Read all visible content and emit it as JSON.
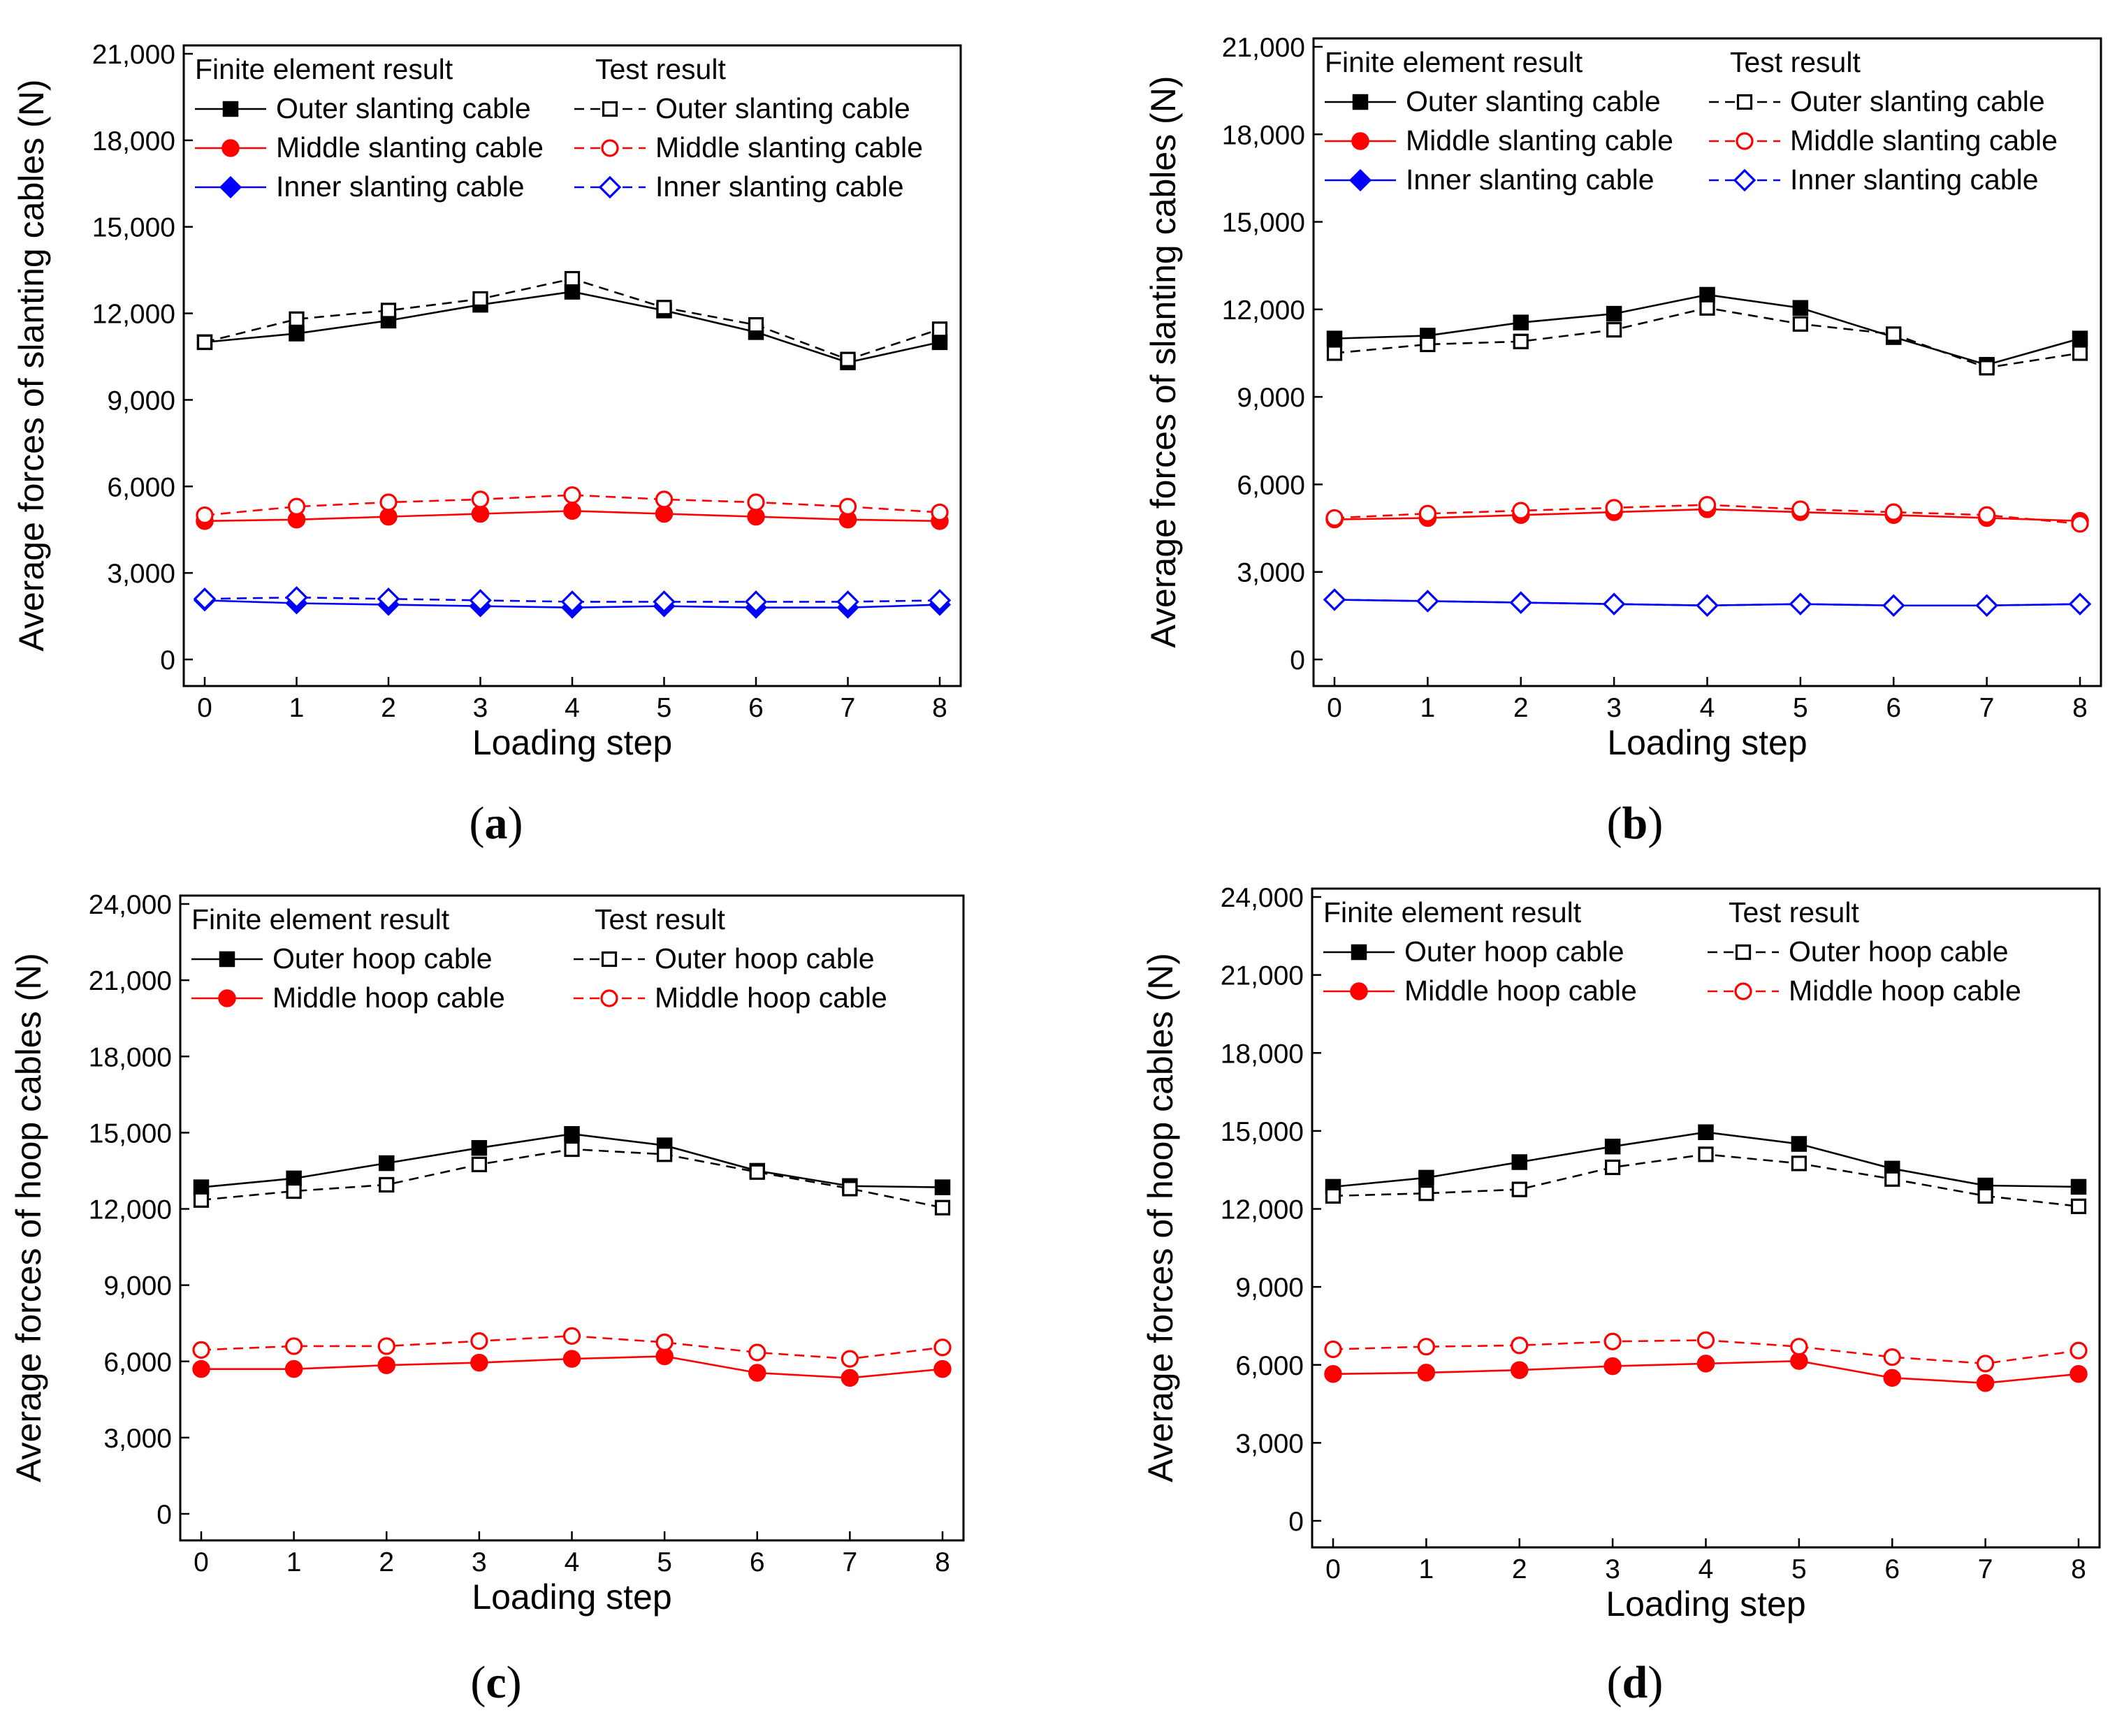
{
  "colors": {
    "black": "#000000",
    "red": "#ff0000",
    "blue": "#0000ff"
  },
  "chart_data": [
    {
      "id": "a",
      "type": "line",
      "panel_label": "a",
      "xlabel": "Loading step",
      "ylabel": "Average forces of slanting cables (N)",
      "x": [
        0,
        1,
        2,
        3,
        4,
        5,
        6,
        7,
        8
      ],
      "xticks": [
        "0",
        "1",
        "2",
        "3",
        "4",
        "5",
        "6",
        "7",
        "8"
      ],
      "ylim": [
        0,
        21000
      ],
      "yticks": [
        0,
        3000,
        6000,
        9000,
        12000,
        15000,
        18000,
        21000
      ],
      "ytick_labels": [
        "0",
        "3,000",
        "6,000",
        "9,000",
        "12,000",
        "15,000",
        "18,000",
        "21,000"
      ],
      "legend_headers": [
        "Finite element result",
        "Test result"
      ],
      "series": [
        {
          "name": "Outer slanting cable",
          "group": "Finite element result",
          "color": "#000000",
          "marker": "square-filled",
          "line": "solid",
          "values": [
            11000,
            11300,
            11750,
            12300,
            12750,
            12100,
            11350,
            10300,
            11000
          ]
        },
        {
          "name": "Middle slanting cable",
          "group": "Finite element result",
          "color": "#ff0000",
          "marker": "circle-filled",
          "line": "solid",
          "values": [
            4800,
            4850,
            4950,
            5050,
            5150,
            5050,
            4950,
            4850,
            4800
          ]
        },
        {
          "name": "Inner slanting cable",
          "group": "Finite element result",
          "color": "#0000ff",
          "marker": "diamond-filled",
          "line": "solid",
          "values": [
            2050,
            1950,
            1900,
            1850,
            1800,
            1850,
            1800,
            1800,
            1900
          ]
        },
        {
          "name": "Outer slanting cable",
          "group": "Test result",
          "color": "#000000",
          "marker": "square-open",
          "line": "dashed",
          "values": [
            11000,
            11800,
            12100,
            12500,
            13200,
            12200,
            11600,
            10400,
            11450
          ]
        },
        {
          "name": "Middle slanting cable",
          "group": "Test result",
          "color": "#ff0000",
          "marker": "circle-open",
          "line": "dashed",
          "values": [
            5000,
            5300,
            5450,
            5550,
            5700,
            5550,
            5450,
            5300,
            5100
          ]
        },
        {
          "name": "Inner slanting cable",
          "group": "Test result",
          "color": "#0000ff",
          "marker": "diamond-open",
          "line": "dashed",
          "values": [
            2100,
            2150,
            2100,
            2050,
            2000,
            2000,
            2000,
            2000,
            2050
          ]
        }
      ]
    },
    {
      "id": "b",
      "type": "line",
      "panel_label": "b",
      "xlabel": "Loading step",
      "ylabel": "Average forces of slanting cables (N)",
      "x": [
        0,
        1,
        2,
        3,
        4,
        5,
        6,
        7,
        8
      ],
      "xticks": [
        "0",
        "1",
        "2",
        "3",
        "4",
        "5",
        "6",
        "7",
        "8"
      ],
      "ylim": [
        0,
        21000
      ],
      "yticks": [
        0,
        3000,
        6000,
        9000,
        12000,
        15000,
        18000,
        21000
      ],
      "ytick_labels": [
        "0",
        "3,000",
        "6,000",
        "9,000",
        "12,000",
        "15,000",
        "18,000",
        "21,000"
      ],
      "legend_headers": [
        "Finite element result",
        "Test result"
      ],
      "series": [
        {
          "name": "Outer slanting cable",
          "group": "Finite element result",
          "color": "#000000",
          "marker": "square-filled",
          "line": "solid",
          "values": [
            11000,
            11100,
            11550,
            11850,
            12500,
            12050,
            11050,
            10100,
            11000
          ]
        },
        {
          "name": "Middle slanting cable",
          "group": "Finite element result",
          "color": "#ff0000",
          "marker": "circle-filled",
          "line": "solid",
          "values": [
            4800,
            4850,
            4950,
            5050,
            5150,
            5050,
            4950,
            4850,
            4750
          ]
        },
        {
          "name": "Inner slanting cable",
          "group": "Finite element result",
          "color": "#0000ff",
          "marker": "diamond-filled",
          "line": "solid",
          "values": [
            2050,
            2000,
            1950,
            1900,
            1850,
            1900,
            1850,
            1850,
            1900
          ]
        },
        {
          "name": "Outer slanting cable",
          "group": "Test result",
          "color": "#000000",
          "marker": "square-open",
          "line": "dashed",
          "values": [
            10500,
            10800,
            10900,
            11300,
            12050,
            11500,
            11150,
            10000,
            10500
          ]
        },
        {
          "name": "Middle slanting cable",
          "group": "Test result",
          "color": "#ff0000",
          "marker": "circle-open",
          "line": "dashed",
          "values": [
            4850,
            5000,
            5100,
            5200,
            5300,
            5150,
            5050,
            4950,
            4650
          ]
        },
        {
          "name": "Inner slanting cable",
          "group": "Test result",
          "color": "#0000ff",
          "marker": "diamond-open",
          "line": "dashed",
          "values": [
            2050,
            2000,
            1950,
            1900,
            1850,
            1900,
            1850,
            1850,
            1900
          ]
        }
      ]
    },
    {
      "id": "c",
      "type": "line",
      "panel_label": "c",
      "xlabel": "Loading step",
      "ylabel": "Average forces of hoop cables (N)",
      "x": [
        0,
        1,
        2,
        3,
        4,
        5,
        6,
        7,
        8
      ],
      "xticks": [
        "0",
        "1",
        "2",
        "3",
        "4",
        "5",
        "6",
        "7",
        "8"
      ],
      "ylim": [
        0,
        24000
      ],
      "yticks": [
        0,
        3000,
        6000,
        9000,
        12000,
        15000,
        18000,
        21000,
        24000
      ],
      "ytick_labels": [
        "0",
        "3,000",
        "6,000",
        "9,000",
        "12,000",
        "15,000",
        "18,000",
        "21,000",
        "24,000"
      ],
      "legend_headers": [
        "Finite element result",
        "Test result"
      ],
      "series": [
        {
          "name": "Outer hoop cable",
          "group": "Finite element result",
          "color": "#000000",
          "marker": "square-filled",
          "line": "solid",
          "values": [
            12850,
            13200,
            13800,
            14400,
            14950,
            14500,
            13500,
            12900,
            12850
          ]
        },
        {
          "name": "Middle hoop cable",
          "group": "Finite element result",
          "color": "#ff0000",
          "marker": "circle-filled",
          "line": "solid",
          "values": [
            5700,
            5700,
            5850,
            5950,
            6100,
            6200,
            5550,
            5350,
            5700
          ]
        },
        {
          "name": "Outer hoop cable",
          "group": "Test result",
          "color": "#000000",
          "marker": "square-open",
          "line": "dashed",
          "values": [
            12350,
            12700,
            12950,
            13750,
            14350,
            14150,
            13450,
            12800,
            12050
          ]
        },
        {
          "name": "Middle hoop cable",
          "group": "Test result",
          "color": "#ff0000",
          "marker": "circle-open",
          "line": "dashed",
          "values": [
            6450,
            6600,
            6600,
            6800,
            7000,
            6750,
            6350,
            6100,
            6550
          ]
        }
      ]
    },
    {
      "id": "d",
      "type": "line",
      "panel_label": "d",
      "xlabel": "Loading step",
      "ylabel": "Average forces of hoop cables (N)",
      "x": [
        0,
        1,
        2,
        3,
        4,
        5,
        6,
        7,
        8
      ],
      "xticks": [
        "0",
        "1",
        "2",
        "3",
        "4",
        "5",
        "6",
        "7",
        "8"
      ],
      "ylim": [
        0,
        24000
      ],
      "yticks": [
        0,
        3000,
        6000,
        9000,
        12000,
        15000,
        18000,
        21000,
        24000
      ],
      "ytick_labels": [
        "0",
        "3,000",
        "6,000",
        "9,000",
        "12,000",
        "15,000",
        "18,000",
        "21,000",
        "24,000"
      ],
      "legend_headers": [
        "Finite element result",
        "Test result"
      ],
      "series": [
        {
          "name": "Outer hoop cable",
          "group": "Finite element result",
          "color": "#000000",
          "marker": "square-filled",
          "line": "solid",
          "values": [
            12850,
            13200,
            13800,
            14400,
            14950,
            14500,
            13550,
            12900,
            12850
          ]
        },
        {
          "name": "Middle hoop cable",
          "group": "Finite element result",
          "color": "#ff0000",
          "marker": "circle-filled",
          "line": "solid",
          "values": [
            5650,
            5700,
            5800,
            5950,
            6050,
            6150,
            5500,
            5300,
            5650
          ]
        },
        {
          "name": "Outer hoop cable",
          "group": "Test result",
          "color": "#000000",
          "marker": "square-open",
          "line": "dashed",
          "values": [
            12500,
            12600,
            12750,
            13600,
            14100,
            13750,
            13150,
            12500,
            12100
          ]
        },
        {
          "name": "Middle hoop cable",
          "group": "Test result",
          "color": "#ff0000",
          "marker": "circle-open",
          "line": "dashed",
          "values": [
            6600,
            6700,
            6750,
            6900,
            6950,
            6700,
            6300,
            6050,
            6550
          ]
        }
      ]
    }
  ]
}
